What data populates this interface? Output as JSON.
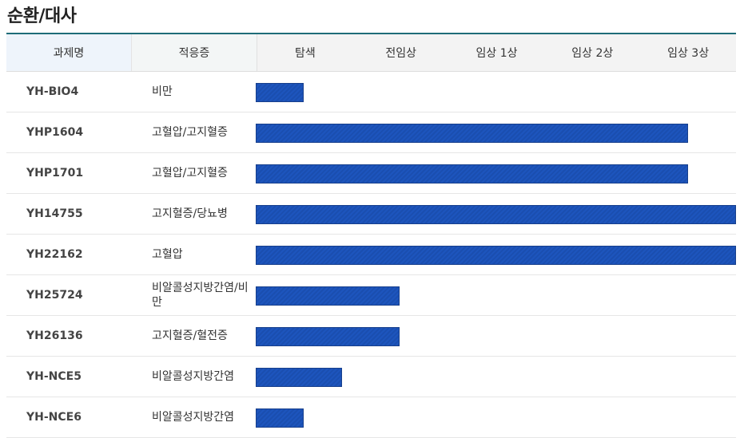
{
  "section_title": "순환/대사",
  "headers": {
    "code": "과제명",
    "indication": "적응증",
    "phases": [
      "탐색",
      "전임상",
      "임상 1상",
      "임상 2상",
      "임상 3상"
    ]
  },
  "colors": {
    "bar": "#1a4eb0",
    "header_rule": "#1e6c78"
  },
  "rows": [
    {
      "code": "YH-BIO4",
      "indication": "비만",
      "progress_fraction": 0.1
    },
    {
      "code": "YHP1604",
      "indication": "고혈압/고지혈증",
      "progress_fraction": 0.9
    },
    {
      "code": "YHP1701",
      "indication": "고혈압/고지혈증",
      "progress_fraction": 0.9
    },
    {
      "code": "YH14755",
      "indication": "고지혈증/당뇨병",
      "progress_fraction": 1.0
    },
    {
      "code": "YH22162",
      "indication": "고혈압",
      "progress_fraction": 1.0
    },
    {
      "code": "YH25724",
      "indication": "비알콜성지방간염/비만",
      "progress_fraction": 0.3
    },
    {
      "code": "YH26136",
      "indication": "고지혈증/혈전증",
      "progress_fraction": 0.3
    },
    {
      "code": "YH-NCE5",
      "indication": "비알콜성지방간염",
      "progress_fraction": 0.18
    },
    {
      "code": "YH-NCE6",
      "indication": "비알콜성지방간염",
      "progress_fraction": 0.1
    }
  ]
}
